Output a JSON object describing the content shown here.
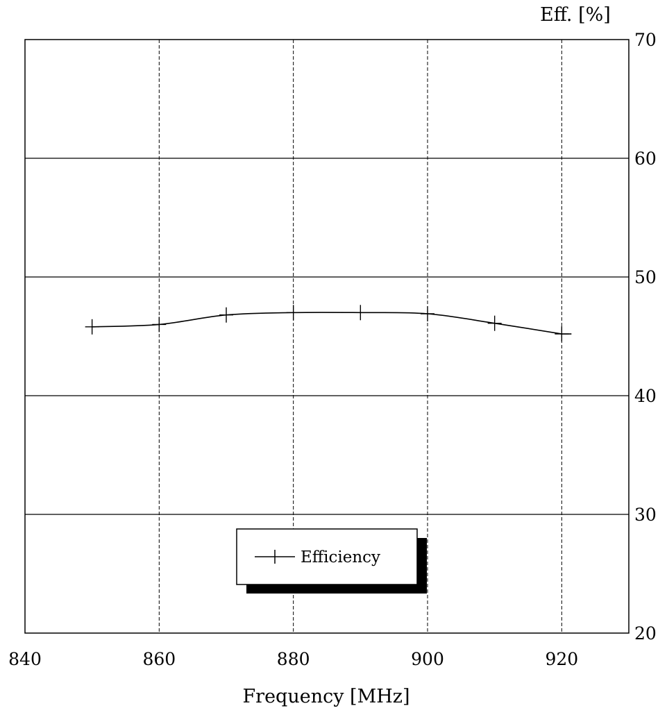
{
  "chart_data": {
    "type": "line",
    "title": "",
    "xlabel": "Frequency [MHz]",
    "ylabel": "Eff. [%]",
    "xlim": [
      840,
      930
    ],
    "ylim": [
      20,
      70
    ],
    "x_ticks": [
      "840",
      "860",
      "880",
      "900",
      "920"
    ],
    "x_tick_values": [
      840,
      860,
      880,
      900,
      920
    ],
    "y_ticks": [
      "70",
      "60",
      "50",
      "40",
      "30",
      "20"
    ],
    "y_tick_values": [
      70,
      60,
      50,
      40,
      30,
      20
    ],
    "y_axis_side": "right",
    "grid": {
      "vertical": "dashed",
      "horizontal": "solid"
    },
    "legend_position": "bottom-center",
    "series": [
      {
        "name": "Efficiency",
        "marker": "plus",
        "x": [
          850,
          860,
          870,
          880,
          890,
          900,
          910,
          920
        ],
        "values": [
          45.8,
          46.0,
          46.8,
          47.0,
          47.0,
          46.9,
          46.1,
          45.2
        ]
      }
    ],
    "colors": {
      "line": "#000000",
      "background": "#ffffff",
      "legend_shadow": "#000000"
    }
  }
}
